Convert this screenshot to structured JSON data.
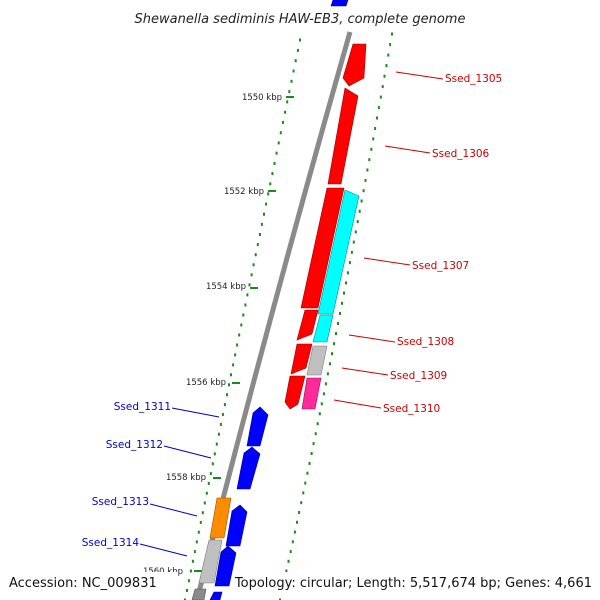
{
  "title": "Shewanella sediminis HAW-EB3, complete genome",
  "footer": {
    "accession": "Accession: NC_009831",
    "summary": "Topology: circular; Length: 5,517,674 bp; Genes: 4,661"
  },
  "ticks": [
    "1550 kbp",
    "1552 kbp",
    "1554 kbp",
    "1556 kbp",
    "1558 kbp",
    "1560 kbp"
  ],
  "genes_right": [
    {
      "name": "Ssed_1305",
      "color": "#cc0000"
    },
    {
      "name": "Ssed_1306",
      "color": "#cc0000"
    },
    {
      "name": "Ssed_1307",
      "color": "#cc0000"
    },
    {
      "name": "Ssed_1308",
      "color": "#cc0000"
    },
    {
      "name": "Ssed_1309",
      "color": "#cc0000"
    },
    {
      "name": "Ssed_1310",
      "color": "#cc0000"
    }
  ],
  "genes_left": [
    {
      "name": "Ssed_1311",
      "color": "#0000cc"
    },
    {
      "name": "Ssed_1312",
      "color": "#0000cc"
    },
    {
      "name": "Ssed_1313",
      "color": "#0000cc"
    },
    {
      "name": "Ssed_1314",
      "color": "#0000cc"
    }
  ],
  "colors": {
    "forward_strand": "#ff0000",
    "reverse_strand": "#0000ff",
    "rna_feature": "#00ffff",
    "pseudo_feature": "#c0c0c0",
    "misc_feature": "#ff2a9a",
    "orange_feature": "#ff8c00",
    "backbone": "#8a8a8a",
    "tick_mark": "#1a8a1a"
  }
}
